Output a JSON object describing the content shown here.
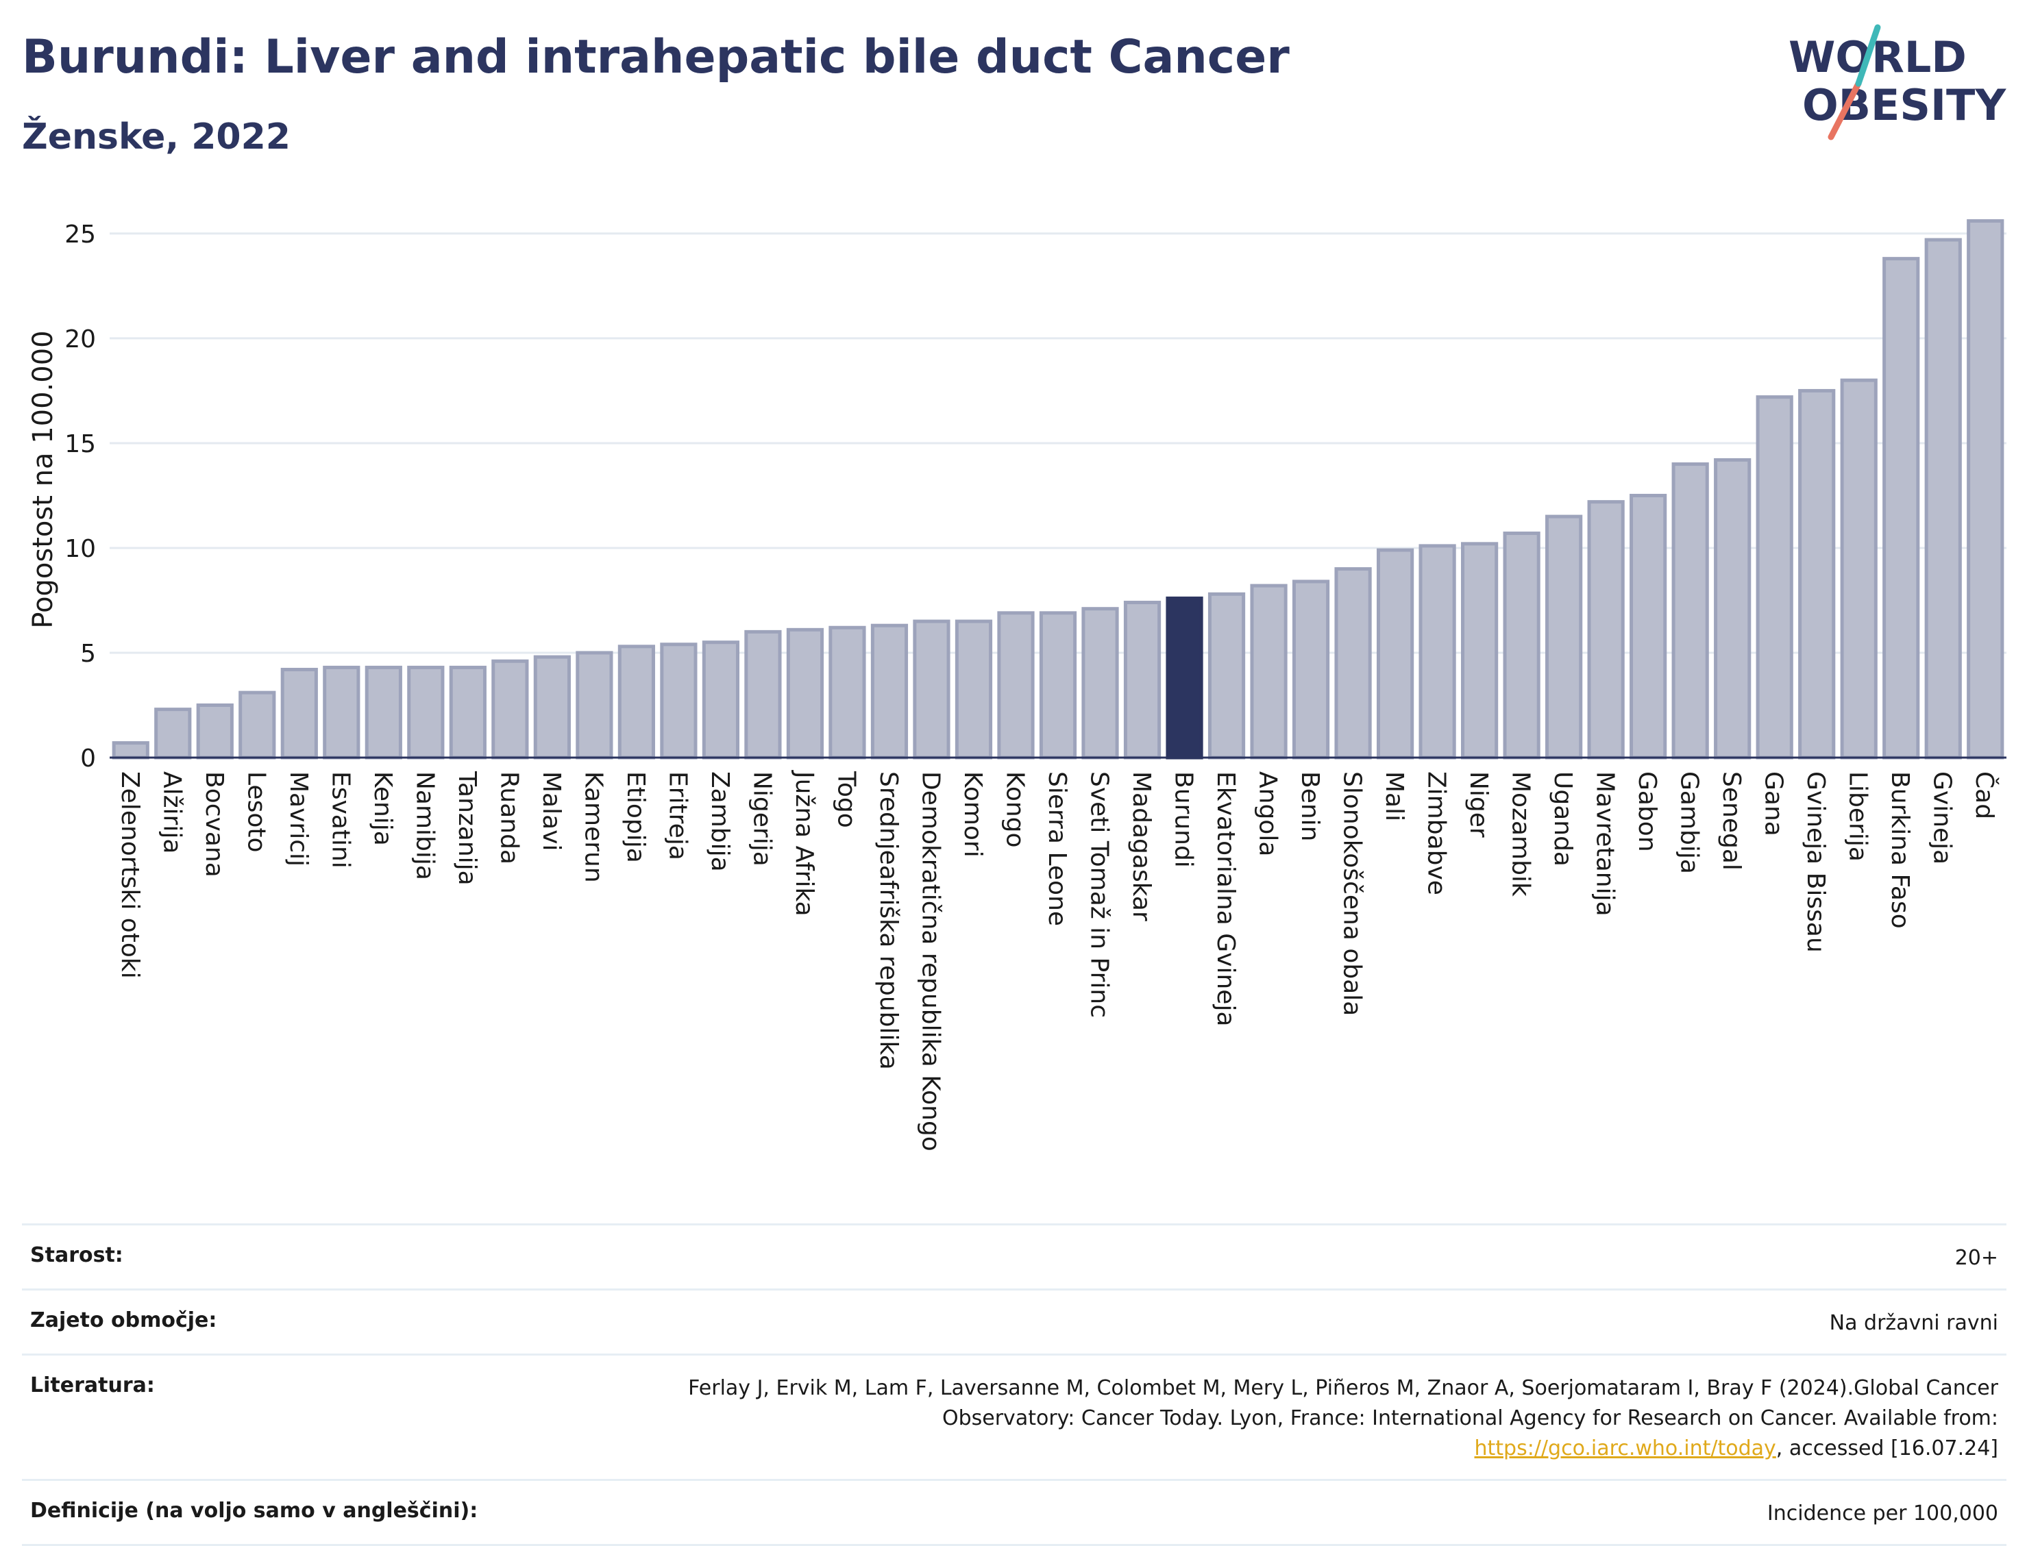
{
  "header": {
    "title": "Burundi: Liver and intrahepatic bile duct Cancer",
    "subtitle": "Ženske, 2022"
  },
  "logo": {
    "line1": "WORLD",
    "line2": "OBESITY"
  },
  "colors": {
    "bar": "#b9bdcd",
    "bar_stroke": "#9da3bb",
    "highlight": "#2c3560",
    "title": "#2c3560",
    "link": "#e0a91b"
  },
  "chart_data": {
    "type": "bar",
    "ylabel": "Pogostost na 100.000",
    "xlabel": "",
    "ylim": [
      0,
      26.5
    ],
    "yticks": [
      0,
      5,
      10,
      15,
      20,
      25
    ],
    "highlight": "Burundi",
    "grid": true,
    "categories": [
      "Zelenortski otoki",
      "Alžirija",
      "Bocvana",
      "Lesoto",
      "Mavricij",
      "Esvatini",
      "Kenija",
      "Namibija",
      "Tanzanija",
      "Ruanda",
      "Malavi",
      "Kamerun",
      "Etiopija",
      "Eritreja",
      "Zambija",
      "Nigerija",
      "Južna Afrika",
      "Togo",
      "Srednjeafriška republika",
      "Demokratična republika Kongo",
      "Komori",
      "Kongo",
      "Sierra Leone",
      "Sveti Tomaž in Princ",
      "Madagaskar",
      "Burundi",
      "Ekvatorialna Gvineja",
      "Angola",
      "Benin",
      "Slonokoščena obala",
      "Mali",
      "Zimbabve",
      "Niger",
      "Mozambik",
      "Uganda",
      "Mavretanija",
      "Gabon",
      "Gambija",
      "Senegal",
      "Gana",
      "Gvineja Bissau",
      "Liberija",
      "Burkina Faso",
      "Gvineja",
      "Čad"
    ],
    "values": [
      0.7,
      2.3,
      2.5,
      3.1,
      4.2,
      4.3,
      4.3,
      4.3,
      4.3,
      4.6,
      4.8,
      5.0,
      5.3,
      5.4,
      5.5,
      6.0,
      6.1,
      6.2,
      6.3,
      6.5,
      6.5,
      6.9,
      6.9,
      7.1,
      7.4,
      7.6,
      7.8,
      8.2,
      8.4,
      9.0,
      9.9,
      10.1,
      10.2,
      10.7,
      11.5,
      12.2,
      12.5,
      14.0,
      14.2,
      17.2,
      17.5,
      18.0,
      23.8,
      24.7,
      25.6
    ]
  },
  "info": [
    {
      "key": "Starost:",
      "value": "20+"
    },
    {
      "key": "Zajeto območje:",
      "value": "Na državni ravni"
    },
    {
      "key": "Literatura:",
      "value_pre": "Ferlay J, Ervik M, Lam F, Laversanne M, Colombet M, Mery L, Piñeros M, Znaor A, Soerjomataram I, Bray F (2024).Global Cancer Observatory: Cancer Today. Lyon, France: International Agency for Research on Cancer. Available from: ",
      "link": "https://gco.iarc.who.int/today",
      "value_post": ", accessed [16.07.24]"
    },
    {
      "key": "Definicije (na voljo samo v angleščini):",
      "value": "Incidence per 100,000"
    }
  ]
}
